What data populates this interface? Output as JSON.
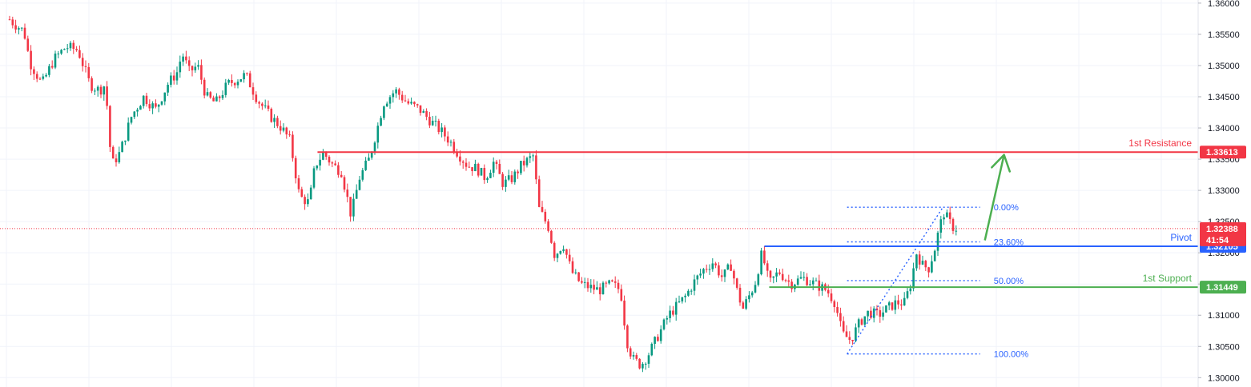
{
  "chart_data": {
    "type": "candlestick",
    "title": "",
    "ylim": [
      1.2985,
      1.3605
    ],
    "y_ticks": [
      "1.30000",
      "1.30500",
      "1.31000",
      "1.31500",
      "1.32000",
      "1.32500",
      "1.33000",
      "1.33500",
      "1.34000",
      "1.34500",
      "1.35000",
      "1.35500",
      "1.36000"
    ],
    "grid": true,
    "current_price": {
      "value": 1.32388,
      "label": "1.32388",
      "countdown": "41:54",
      "color": "#f23645"
    },
    "levels": [
      {
        "name": "1st Resistance",
        "value": 1.33613,
        "label": "1.33613",
        "color": "#f23645",
        "x_start": 0.265
      },
      {
        "name": "Pivot",
        "value": 1.32105,
        "label": "1.32105",
        "color": "#2962ff",
        "x_start": 0.638
      },
      {
        "name": "1st Support",
        "value": 1.31449,
        "label": "1.31449",
        "color": "#4caf50",
        "x_start": 0.642
      }
    ],
    "fibonacci": {
      "color": "#2962ff",
      "x_start": 0.707,
      "x_end": 0.818,
      "high": 1.3273,
      "low": 1.3038,
      "levels": [
        {
          "label": "0.00%",
          "value": 1.3273
        },
        {
          "label": "23.60%",
          "value": 1.32175
        },
        {
          "label": "50.00%",
          "value": 1.31555
        },
        {
          "label": "100.00%",
          "value": 1.3038
        }
      ]
    },
    "arrow": {
      "from_x": 0.822,
      "from_value": 1.322,
      "to_x": 0.838,
      "to_value": 1.3357,
      "color": "#4caf50"
    },
    "candle_colors": {
      "up": "#089981",
      "down": "#f23645"
    },
    "price_path": [
      [
        0.0,
        1.359
      ],
      [
        0.01,
        1.357
      ],
      [
        0.02,
        1.3555
      ],
      [
        0.025,
        1.3505
      ],
      [
        0.035,
        1.347
      ],
      [
        0.045,
        1.351
      ],
      [
        0.055,
        1.353
      ],
      [
        0.065,
        1.3525
      ],
      [
        0.075,
        1.347
      ],
      [
        0.083,
        1.346
      ],
      [
        0.088,
        1.347
      ],
      [
        0.093,
        1.334
      ],
      [
        0.1,
        1.336
      ],
      [
        0.11,
        1.342
      ],
      [
        0.12,
        1.345
      ],
      [
        0.13,
        1.343
      ],
      [
        0.14,
        1.347
      ],
      [
        0.148,
        1.349
      ],
      [
        0.152,
        1.352
      ],
      [
        0.158,
        1.349
      ],
      [
        0.165,
        1.35
      ],
      [
        0.172,
        1.345
      ],
      [
        0.18,
        1.344
      ],
      [
        0.19,
        1.347
      ],
      [
        0.205,
        1.3485
      ],
      [
        0.215,
        1.3445
      ],
      [
        0.225,
        1.342
      ],
      [
        0.235,
        1.34
      ],
      [
        0.242,
        1.338
      ],
      [
        0.25,
        1.329
      ],
      [
        0.258,
        1.328
      ],
      [
        0.263,
        1.334
      ],
      [
        0.27,
        1.336
      ],
      [
        0.278,
        1.334
      ],
      [
        0.285,
        1.333
      ],
      [
        0.293,
        1.326
      ],
      [
        0.3,
        1.332
      ],
      [
        0.308,
        1.335
      ],
      [
        0.315,
        1.34
      ],
      [
        0.32,
        1.344
      ],
      [
        0.33,
        1.346
      ],
      [
        0.34,
        1.344
      ],
      [
        0.35,
        1.343
      ],
      [
        0.36,
        1.341
      ],
      [
        0.368,
        1.3395
      ],
      [
        0.375,
        1.338
      ],
      [
        0.382,
        1.336
      ],
      [
        0.39,
        1.334
      ],
      [
        0.398,
        1.3335
      ],
      [
        0.405,
        1.332
      ],
      [
        0.412,
        1.3345
      ],
      [
        0.42,
        1.331
      ],
      [
        0.428,
        1.332
      ],
      [
        0.435,
        1.334
      ],
      [
        0.445,
        1.3355
      ],
      [
        0.45,
        1.327
      ],
      [
        0.458,
        1.324
      ],
      [
        0.463,
        1.3195
      ],
      [
        0.47,
        1.3215
      ],
      [
        0.477,
        1.317
      ],
      [
        0.485,
        1.315
      ],
      [
        0.492,
        1.3145
      ],
      [
        0.5,
        1.314
      ],
      [
        0.51,
        1.315
      ],
      [
        0.518,
        1.314
      ],
      [
        0.523,
        1.306
      ],
      [
        0.528,
        1.303
      ],
      [
        0.535,
        1.302
      ],
      [
        0.542,
        1.304
      ],
      [
        0.55,
        1.307
      ],
      [
        0.558,
        1.31
      ],
      [
        0.565,
        1.3115
      ],
      [
        0.572,
        1.313
      ],
      [
        0.58,
        1.3155
      ],
      [
        0.588,
        1.3175
      ],
      [
        0.595,
        1.3185
      ],
      [
        0.603,
        1.316
      ],
      [
        0.61,
        1.318
      ],
      [
        0.615,
        1.314
      ],
      [
        0.62,
        1.311
      ],
      [
        0.625,
        1.313
      ],
      [
        0.63,
        1.315
      ],
      [
        0.636,
        1.32
      ],
      [
        0.642,
        1.315
      ],
      [
        0.65,
        1.317
      ],
      [
        0.66,
        1.315
      ],
      [
        0.67,
        1.316
      ],
      [
        0.68,
        1.315
      ],
      [
        0.69,
        1.314
      ],
      [
        0.697,
        1.312
      ],
      [
        0.703,
        1.307
      ],
      [
        0.71,
        1.306
      ],
      [
        0.718,
        1.309
      ],
      [
        0.725,
        1.3105
      ],
      [
        0.733,
        1.31
      ],
      [
        0.74,
        1.311
      ],
      [
        0.748,
        1.312
      ],
      [
        0.755,
        1.312
      ],
      [
        0.76,
        1.315
      ],
      [
        0.765,
        1.32
      ],
      [
        0.77,
        1.318
      ],
      [
        0.775,
        1.3175
      ],
      [
        0.78,
        1.3205
      ],
      [
        0.784,
        1.324
      ],
      [
        0.788,
        1.3265
      ],
      [
        0.792,
        1.325
      ],
      [
        0.796,
        1.324
      ],
      [
        0.8,
        1.3239
      ]
    ]
  }
}
